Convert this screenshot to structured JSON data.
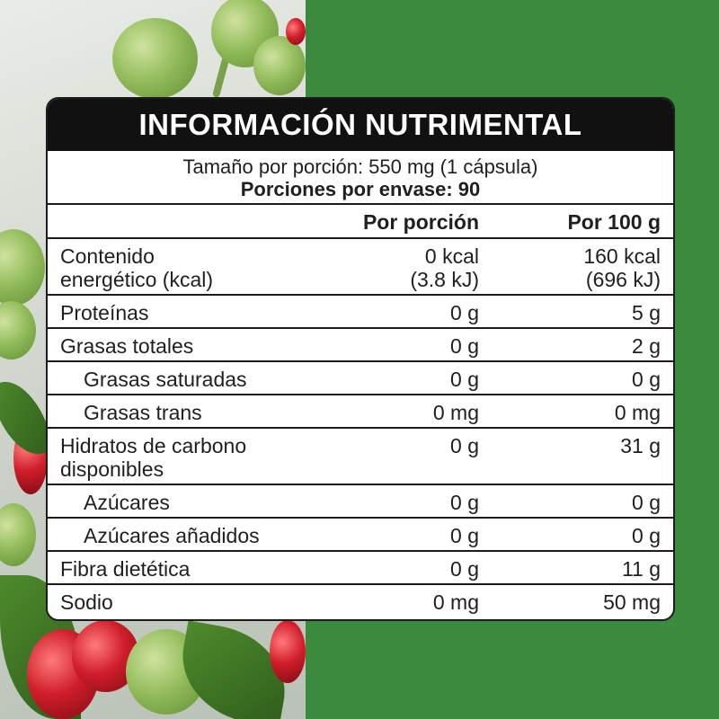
{
  "panel": {
    "title": "INFORMACIÓN NUTRIMENTAL",
    "serving_size": "Tamaño por porción: 550 mg (1 cápsula)",
    "servings_per_container": "Porciones por envase: 90"
  },
  "columns": {
    "per_serving": "Por porción",
    "per_100g": "Por 100 g"
  },
  "rows": [
    {
      "label_l1": "Contenido",
      "label_l2": "energético (kcal)",
      "v1_l1": "0 kcal",
      "v1_l2": "(3.8 kJ)",
      "v2_l1": "160 kcal",
      "v2_l2": "(696 kJ)"
    },
    {
      "label": "Proteínas",
      "v1": "0 g",
      "v2": "5 g"
    },
    {
      "label": "Grasas totales",
      "v1": "0 g",
      "v2": "2 g"
    },
    {
      "label": "Grasas saturadas",
      "v1": "0 g",
      "v2": "0 g"
    },
    {
      "label": "Grasas trans",
      "v1": "0 mg",
      "v2": "0 mg"
    },
    {
      "label_l1": "Hidratos de carbono",
      "label_l2": "disponibles",
      "v1": "0 g",
      "v2": "31 g"
    },
    {
      "label": "Azúcares",
      "v1": "0 g",
      "v2": "0 g"
    },
    {
      "label": "Azúcares añadidos",
      "v1": "0 g",
      "v2": "0 g"
    },
    {
      "label": "Fibra dietética",
      "v1": "0 g",
      "v2": "11 g"
    },
    {
      "label": "Sodio",
      "v1": "0 mg",
      "v2": "50 mg"
    }
  ],
  "colors": {
    "background_green": "#3b8a3d",
    "header_black": "#111111",
    "border": "#1c1c1c"
  }
}
